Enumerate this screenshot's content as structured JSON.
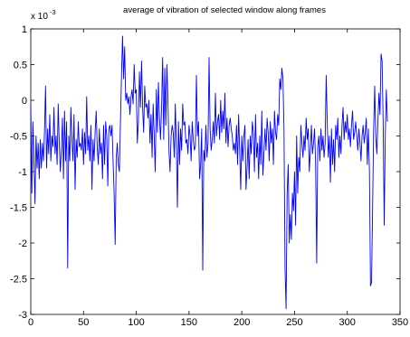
{
  "chart_data": {
    "type": "line",
    "title": "average of vibration of selected window along frames",
    "xlabel": "",
    "ylabel": "",
    "y_exponent_base": "x 10",
    "y_exponent_power": "-3",
    "xlim": [
      0,
      350
    ],
    "ylim": [
      -3,
      1
    ],
    "grid": false,
    "x_ticks": [
      0,
      50,
      100,
      150,
      200,
      250,
      300,
      350
    ],
    "x_tick_labels": [
      "0",
      "50",
      "100",
      "150",
      "200",
      "250",
      "300",
      "350"
    ],
    "y_ticks": [
      1,
      0.5,
      0,
      -0.5,
      -1,
      -1.5,
      -2,
      -2.5,
      -3
    ],
    "y_tick_labels": [
      "1",
      "0.5",
      "0",
      "-0.5",
      "-1",
      "-1.5",
      "-2",
      "-2.5",
      "-3"
    ],
    "series": [
      {
        "color": "#0000ff",
        "values": [
          -0.05,
          -1.3,
          -0.3,
          -0.85,
          -1.45,
          -0.5,
          -0.95,
          -0.6,
          -1.1,
          -0.55,
          -0.95,
          -0.6,
          -0.85,
          -0.45,
          0.2,
          -0.95,
          -0.4,
          -0.75,
          -0.2,
          -0.85,
          -0.5,
          -0.65,
          -0.1,
          -0.75,
          -0.5,
          -0.9,
          -0.05,
          -0.6,
          -1.0,
          -0.7,
          -0.25,
          -1.1,
          -0.15,
          -0.85,
          -0.3,
          -2.35,
          -0.5,
          -0.85,
          -0.1,
          -0.55,
          -0.85,
          -0.2,
          -1.25,
          -0.55,
          -0.8,
          -0.3,
          -0.65,
          -0.6,
          -0.7,
          -0.4,
          -0.9,
          -0.45,
          -0.75,
          0.05,
          -0.7,
          -0.5,
          -0.85,
          -0.35,
          -1.25,
          -0.55,
          -0.85,
          -0.45,
          -0.15,
          -0.65,
          -0.9,
          -0.4,
          -0.75,
          -0.6,
          -1.1,
          -0.35,
          -0.9,
          -0.3,
          -0.5,
          -1.2,
          -0.4,
          -0.35,
          -0.5,
          -0.35,
          -0.85,
          -1.3,
          -2.02,
          -0.8,
          -0.6,
          -0.9,
          -1.0,
          -0.3,
          0.35,
          0.9,
          0.3,
          0.75,
          0.0,
          0.1,
          -0.05,
          0.05,
          -0.2,
          0.05,
          0.15,
          -0.05,
          0.5,
          0.1,
          0.15,
          -0.6,
          -0.3,
          0.4,
          -0.1,
          0.55,
          -0.1,
          -0.45,
          0.2,
          -0.1,
          -0.05,
          -0.25,
          0.0,
          -0.6,
          -0.2,
          -0.8,
          -0.05,
          -0.5,
          -1.0,
          0.15,
          -0.45,
          0.25,
          -0.25,
          -0.55,
          -0.1,
          0.6,
          -0.55,
          0.45,
          -0.35,
          0.5,
          0.0,
          -0.7,
          -1.0,
          -0.5,
          -0.35,
          -0.45,
          -0.8,
          -0.05,
          -0.65,
          -1.5,
          -0.3,
          -0.9,
          -0.4,
          -0.7,
          -0.05,
          -0.35,
          -0.3,
          -0.6,
          -0.55,
          -0.75,
          -0.35,
          -0.5,
          -0.85,
          -0.3,
          -0.55,
          -0.7,
          -0.65,
          0.35,
          -0.5,
          -0.3,
          -1.1,
          -0.9,
          -0.4,
          -2.38,
          -0.7,
          -0.85,
          -0.35,
          -0.8,
          -0.6,
          0.6,
          -0.4,
          -0.7,
          -0.55,
          -0.3,
          -0.6,
          0.1,
          -0.5,
          -0.3,
          -0.2,
          -0.55,
          0.0,
          -0.45,
          -0.15,
          -0.4,
          0.1,
          -0.6,
          -0.25,
          -0.65,
          -0.35,
          -0.25,
          -0.4,
          -0.5,
          -0.7,
          -0.6,
          -0.75,
          -0.35,
          -0.9,
          -0.2,
          -0.7,
          -1.25,
          -0.5,
          -0.85,
          -0.5,
          -0.35,
          -1.25,
          -0.95,
          -0.55,
          -1.1,
          -0.5,
          -0.75,
          -0.3,
          -0.45,
          -1.0,
          -0.2,
          -0.8,
          -0.6,
          -1.1,
          -0.5,
          -0.9,
          -0.15,
          -1.05,
          -0.75,
          -0.4,
          -0.7,
          -0.25,
          -0.45,
          -0.85,
          -0.3,
          -0.6,
          -0.4,
          -0.9,
          -0.15,
          -0.45,
          -0.55,
          -0.2,
          -0.35,
          0.3,
          0.15,
          0.45,
          0.3,
          -0.4,
          -2.35,
          -2.92,
          -1.3,
          -0.9,
          -2.0,
          -1.6,
          -1.95,
          -1.3,
          -1.55,
          -1.0,
          -1.75,
          -0.5,
          -1.3,
          -0.8,
          -1.0,
          -0.35,
          -0.6,
          -0.8,
          -0.5,
          -0.7,
          -0.25,
          -0.55,
          -0.4,
          -1.0,
          -0.7,
          -0.35,
          -0.75,
          -0.6,
          -0.4,
          -0.9,
          -2.28,
          -0.65,
          -0.5,
          -0.85,
          -0.4,
          -0.7,
          -0.5,
          -0.8,
          -0.6,
          0.35,
          -0.3,
          -0.8,
          -0.5,
          -1.15,
          -0.4,
          -0.9,
          -0.55,
          -1.0,
          -0.35,
          -0.55,
          -0.25,
          -0.8,
          -0.5,
          -0.75,
          -0.35,
          -0.1,
          -0.55,
          -0.3,
          -0.45,
          -0.2,
          -0.55,
          -0.4,
          -0.65,
          -0.35,
          -0.15,
          -0.55,
          -0.45,
          -0.3,
          -0.5,
          -0.7,
          -0.4,
          -0.6,
          -0.85,
          -0.5,
          -0.35,
          -0.6,
          -0.45,
          -0.25,
          -0.9,
          -0.4,
          -1.0,
          -2.6,
          -2.55,
          -1.5,
          -0.4,
          0.2,
          -0.5,
          -0.75,
          -0.3,
          0.1,
          -0.2,
          0.65,
          0.55,
          -0.3,
          -1.75,
          -0.5,
          0.15,
          -0.3
        ]
      }
    ]
  }
}
